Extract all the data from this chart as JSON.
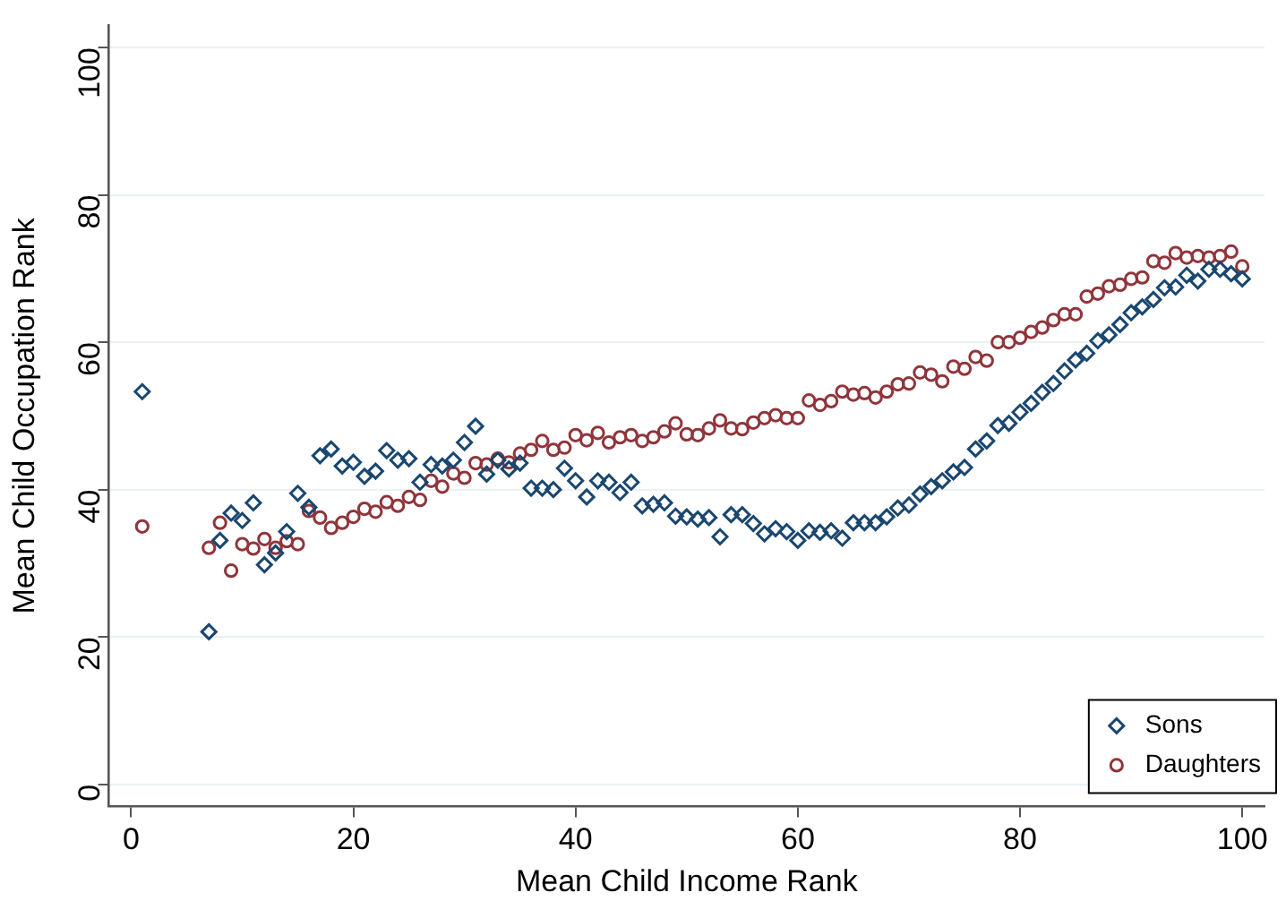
{
  "chart_data": {
    "type": "scatter",
    "xlabel": "Mean Child Income Rank",
    "ylabel": "Mean Child Occupation Rank",
    "x": [
      1,
      7,
      8,
      9,
      10,
      11,
      12,
      13,
      14,
      15,
      16,
      17,
      18,
      19,
      20,
      21,
      22,
      23,
      24,
      25,
      26,
      27,
      28,
      29,
      30,
      31,
      32,
      33,
      34,
      35,
      36,
      37,
      38,
      39,
      40,
      41,
      42,
      43,
      44,
      45,
      46,
      47,
      48,
      49,
      50,
      51,
      52,
      53,
      54,
      55,
      56,
      57,
      58,
      59,
      60,
      61,
      62,
      63,
      64,
      65,
      66,
      67,
      68,
      69,
      70,
      71,
      72,
      73,
      74,
      75,
      76,
      77,
      78,
      79,
      80,
      81,
      82,
      83,
      84,
      85,
      86,
      87,
      88,
      89,
      90,
      91,
      92,
      93,
      94,
      95,
      96,
      97,
      98,
      99,
      100
    ],
    "series": [
      {
        "name": "Sons",
        "color": "#1a476f",
        "marker": "diamond",
        "values": [
          53.3,
          20.7,
          33.1,
          36.8,
          35.8,
          38.2,
          29.8,
          31.4,
          34.3,
          39.5,
          37.6,
          44.6,
          45.5,
          43.2,
          43.7,
          41.8,
          42.5,
          45.3,
          44,
          44.2,
          41,
          43.4,
          43.2,
          44,
          46.4,
          48.6,
          42.1,
          44,
          42.8,
          43.6,
          40.2,
          40.2,
          40,
          42.9,
          41.2,
          39,
          41.2,
          41,
          39.6,
          41,
          37.8,
          38,
          38.2,
          36.4,
          36.3,
          36,
          36.2,
          33.6,
          36.6,
          36.6,
          35.4,
          34,
          34.7,
          34.3,
          33.1,
          34.4,
          34.2,
          34.4,
          33.4,
          35.5,
          35.5,
          35.5,
          36.3,
          37.5,
          37.9,
          39.4,
          40.4,
          41.2,
          42.4,
          43,
          45.5,
          46.6,
          48.7,
          49,
          50.5,
          51.7,
          53.2,
          54.4,
          56.1,
          57.6,
          58.5,
          60.2,
          61,
          62.4,
          64,
          64.8,
          65.8,
          67.4,
          67.5,
          69.1,
          68.3,
          69.9,
          69.9,
          69.3,
          68.6
        ]
      },
      {
        "name": "Daughters",
        "color": "#90353b",
        "marker": "circle",
        "values": [
          35,
          32.1,
          35.5,
          29,
          32.6,
          32,
          33.3,
          32.1,
          33,
          32.6,
          37.1,
          36.2,
          34.8,
          35.5,
          36.3,
          37.4,
          37,
          38.3,
          37.8,
          39,
          38.6,
          41.2,
          40.4,
          42.2,
          41.6,
          43.6,
          43.4,
          44.2,
          43.7,
          44.9,
          45.4,
          46.6,
          45.4,
          45.7,
          47.4,
          46.7,
          47.7,
          46.4,
          47.1,
          47.4,
          46.6,
          47.1,
          47.9,
          49,
          47.5,
          47.4,
          48.3,
          49.4,
          48.3,
          48.2,
          49.1,
          49.7,
          50.1,
          49.7,
          49.7,
          52.1,
          51.5,
          52,
          53.3,
          52.9,
          53.1,
          52.5,
          53.3,
          54.3,
          54.4,
          55.9,
          55.6,
          54.7,
          56.7,
          56.4,
          58,
          57.5,
          60,
          60,
          60.6,
          61.4,
          62,
          63,
          63.8,
          63.8,
          66.2,
          66.6,
          67.6,
          67.8,
          68.6,
          68.8,
          71,
          70.8,
          72.1,
          71.5,
          71.7,
          71.5,
          71.7,
          72.3,
          70.3
        ]
      }
    ],
    "xlim": [
      -2,
      102
    ],
    "xticks": [
      0,
      20,
      40,
      60,
      80,
      100
    ],
    "ylim": [
      -3,
      103
    ],
    "yticks": [
      0,
      20,
      40,
      60,
      80,
      100
    ],
    "grid": "y",
    "legend": "bottom right"
  }
}
